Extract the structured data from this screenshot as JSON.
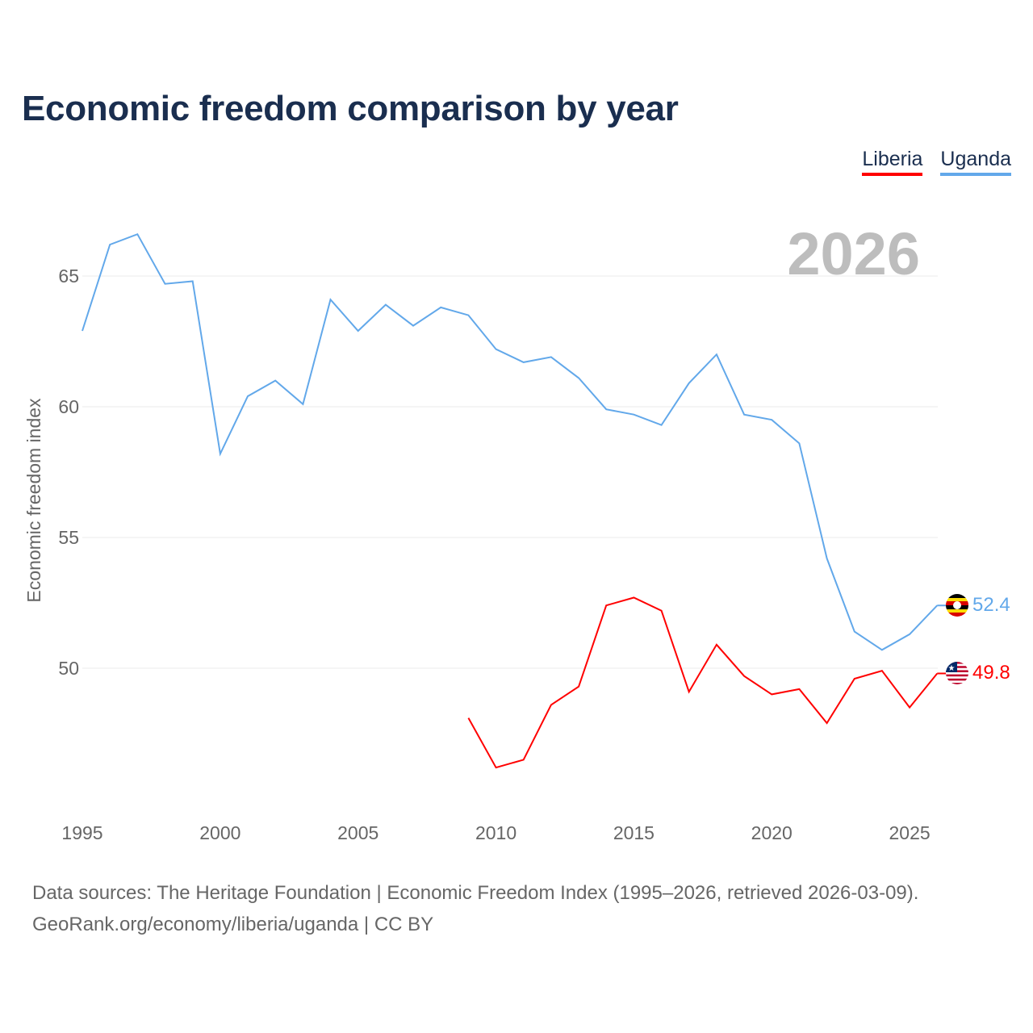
{
  "title": "Economic freedom comparison by year",
  "year_watermark": "2026",
  "source_line1": "Data sources: The Heritage Foundation | Economic Freedom Index (1995–2026, retrieved 2026-03-09).",
  "source_line2": "GeoRank.org/economy/liberia/uganda | CC BY",
  "chart_data": {
    "type": "line",
    "title": "Economic freedom comparison by year",
    "xlabel": "",
    "ylabel": "Economic freedom index",
    "xlim": [
      1995,
      2026
    ],
    "ylim": [
      45,
      68
    ],
    "x_ticks": [
      "1995",
      "2000",
      "2005",
      "2010",
      "2015",
      "2020",
      "2025"
    ],
    "y_ticks": [
      "50",
      "55",
      "60",
      "65"
    ],
    "grid": true,
    "legend_position": "top-right",
    "series": [
      {
        "name": "Liberia",
        "color": "#ff0000",
        "end_label": "49.8",
        "x": [
          2009,
          2010,
          2011,
          2012,
          2013,
          2014,
          2015,
          2016,
          2017,
          2018,
          2019,
          2020,
          2021,
          2022,
          2023,
          2024,
          2025,
          2026
        ],
        "values": [
          48.1,
          46.2,
          46.5,
          48.6,
          49.3,
          52.4,
          52.7,
          52.2,
          49.1,
          50.9,
          49.7,
          49.0,
          49.2,
          47.9,
          49.6,
          49.9,
          48.5,
          49.8
        ]
      },
      {
        "name": "Uganda",
        "color": "#62a8ea",
        "end_label": "52.4",
        "x": [
          1995,
          1996,
          1997,
          1998,
          1999,
          2000,
          2001,
          2002,
          2003,
          2004,
          2005,
          2006,
          2007,
          2008,
          2009,
          2010,
          2011,
          2012,
          2013,
          2014,
          2015,
          2016,
          2017,
          2018,
          2019,
          2020,
          2021,
          2022,
          2023,
          2024,
          2025,
          2026
        ],
        "values": [
          62.9,
          66.2,
          66.6,
          64.7,
          64.8,
          58.2,
          60.4,
          61.0,
          60.1,
          64.1,
          62.9,
          63.9,
          63.1,
          63.8,
          63.5,
          62.2,
          61.7,
          61.9,
          61.1,
          59.9,
          59.7,
          59.3,
          60.9,
          62.0,
          59.7,
          59.5,
          58.6,
          54.2,
          51.4,
          50.7,
          51.3,
          52.4
        ]
      }
    ]
  }
}
